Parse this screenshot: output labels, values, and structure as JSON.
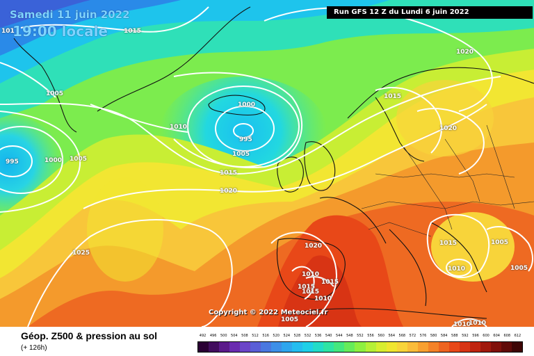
{
  "header": {
    "date": "Samedi 11 juin 2022",
    "time": "19:00 locale",
    "run": "Run GFS 12 Z du Lundi 6 juin 2022"
  },
  "copyright": "Copyright © 2022 Meteociel.fr",
  "footer": {
    "title": "Géop. Z500 & pression au sol",
    "subtitle": "(+ 126h)"
  },
  "isobars": {
    "labels": [
      {
        "text": "1015",
        "name": "isobar-label-1015-nw"
      },
      {
        "text": "101",
        "name": "isobar-label-101-w"
      },
      {
        "text": "1005",
        "name": "isobar-label-1005-greenland"
      },
      {
        "text": "1010",
        "name": "isobar-label-1010-atlantic"
      },
      {
        "text": "1000",
        "name": "isobar-label-1000-iceland"
      },
      {
        "text": "995",
        "name": "isobar-label-995-low"
      },
      {
        "text": "1005",
        "name": "isobar-label-1005-iceland-s"
      },
      {
        "text": "1015",
        "name": "isobar-label-1015-mid"
      },
      {
        "text": "1020",
        "name": "isobar-label-1020-mid"
      },
      {
        "text": "995",
        "name": "isobar-label-995-west"
      },
      {
        "text": "1000",
        "name": "isobar-label-1000-west"
      },
      {
        "text": "1005",
        "name": "isobar-label-1005-west"
      },
      {
        "text": "1025",
        "name": "isobar-label-1025-azores"
      },
      {
        "text": "1020",
        "name": "isobar-label-1020-scandinavia"
      },
      {
        "text": "1015",
        "name": "isobar-label-1015-norway"
      },
      {
        "text": "1020",
        "name": "isobar-label-1020-sweden"
      },
      {
        "text": "1020",
        "name": "isobar-label-1020-iberia"
      },
      {
        "text": "1010",
        "name": "isobar-label-1010-spain"
      },
      {
        "text": "1015",
        "name": "isobar-label-1015-spain-a"
      },
      {
        "text": "1015",
        "name": "isobar-label-1015-spain-b"
      },
      {
        "text": "1015",
        "name": "isobar-label-1015-spain-c"
      },
      {
        "text": "1010",
        "name": "isobar-label-1010-med"
      },
      {
        "text": "1005",
        "name": "isobar-label-1005-africa"
      },
      {
        "text": "1015",
        "name": "isobar-label-1015-balkans"
      },
      {
        "text": "1005",
        "name": "isobar-label-1005-greece-n"
      },
      {
        "text": "1010",
        "name": "isobar-label-1010-balkans"
      },
      {
        "text": "1005",
        "name": "isobar-label-1005-turkey"
      },
      {
        "text": "1010",
        "name": "isobar-label-1010-se-a"
      },
      {
        "text": "1010",
        "name": "isobar-label-1010-se-b"
      }
    ]
  },
  "legend": {
    "values": [
      "492",
      "496",
      "500",
      "504",
      "508",
      "512",
      "516",
      "520",
      "524",
      "528",
      "532",
      "536",
      "540",
      "544",
      "548",
      "552",
      "556",
      "560",
      "564",
      "568",
      "572",
      "576",
      "580",
      "584",
      "588",
      "592",
      "596",
      "600",
      "604",
      "608",
      "612"
    ],
    "colors": [
      "#2a0034",
      "#420d5e",
      "#5b1a8a",
      "#6a2bb0",
      "#6b45c8",
      "#5a5ed6",
      "#4a78e0",
      "#3d8fe8",
      "#2fa6ee",
      "#24bdf0",
      "#1ed0e8",
      "#22dcc8",
      "#2ee4a4",
      "#44e87e",
      "#66ec5a",
      "#8ef040",
      "#b6f036",
      "#d8ee30",
      "#f0e630",
      "#f8d43a",
      "#fabc3a",
      "#f8a030",
      "#f48228",
      "#ee6420",
      "#e84818",
      "#d83414",
      "#c02410",
      "#a0180c",
      "#80100a",
      "#600a08",
      "#3e0606"
    ]
  }
}
